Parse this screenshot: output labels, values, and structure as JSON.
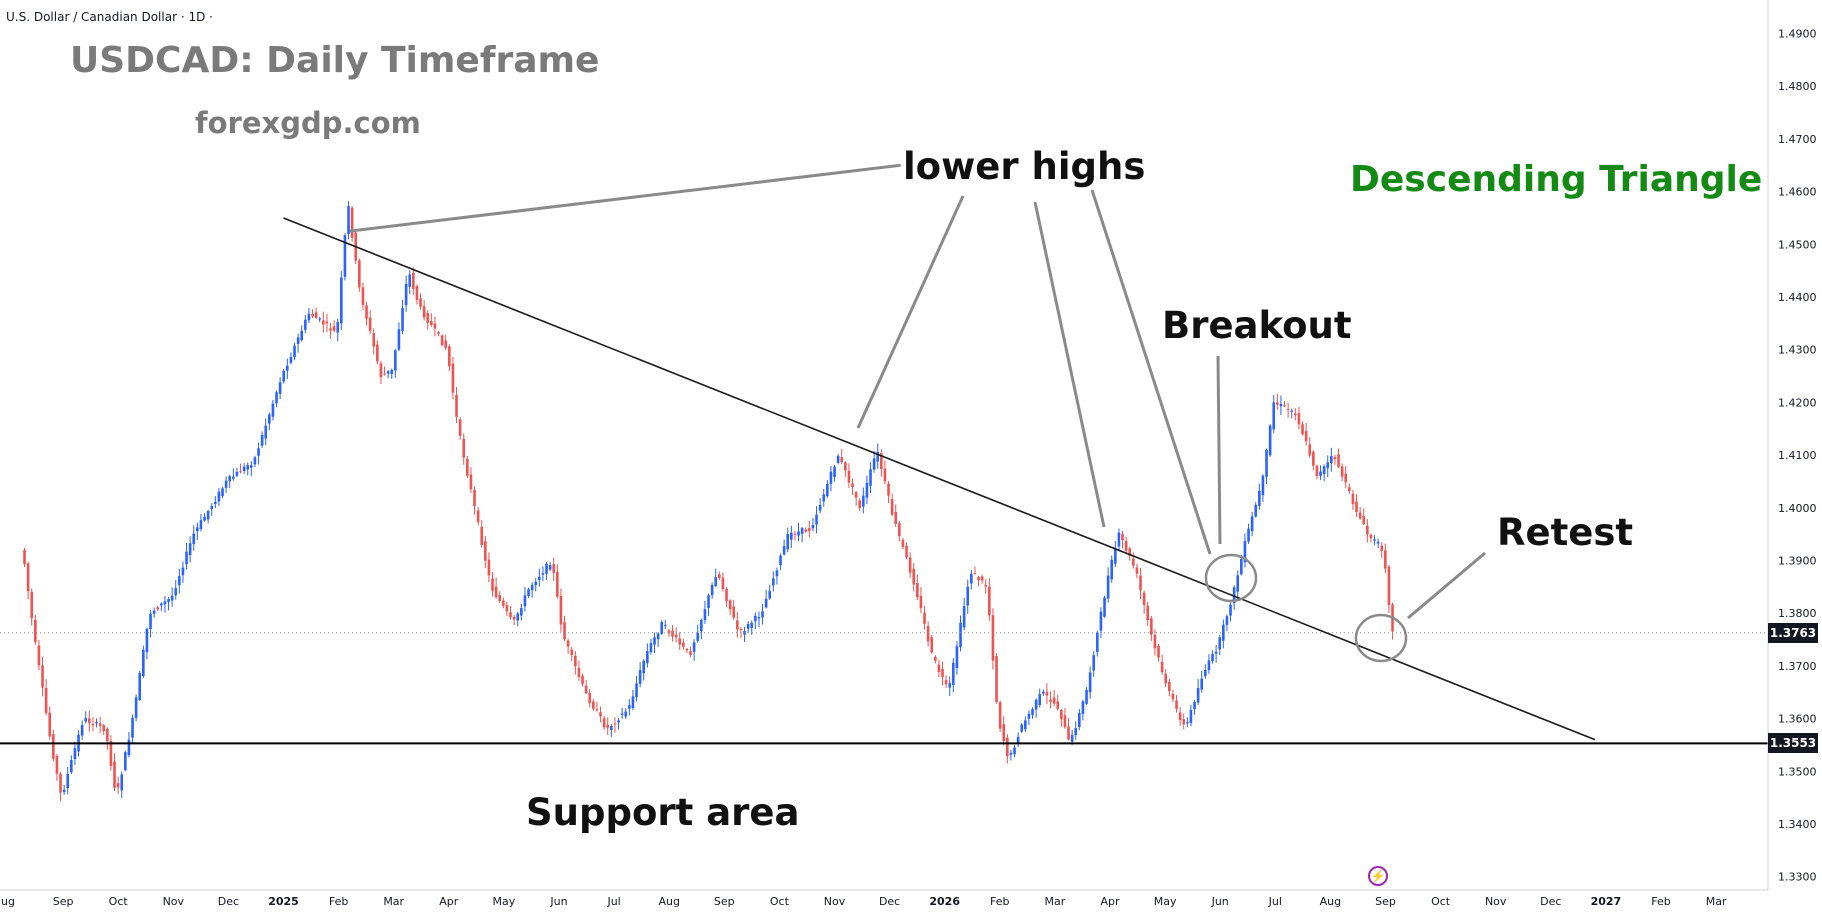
{
  "header": {
    "symbol_line": "U.S. Dollar / Canadian Dollar · 1D ·"
  },
  "annotations": {
    "title": "USDCAD: Daily Timeframe",
    "website": "forexgdp.com",
    "lower_highs": "lower highs",
    "pattern": "Descending Triangle",
    "breakout": "Breakout",
    "retest": "Retest",
    "support": "Support area"
  },
  "price_tags": {
    "last": "1.3763",
    "support": "1.3553"
  },
  "colors": {
    "up_candle": "#2962ff",
    "down_candle": "#ef5350",
    "pattern_text": "#138a13",
    "annotation_grey": "#7a7a7a"
  },
  "icons": {
    "alert": "lightning-alert-icon"
  },
  "chart_data": {
    "type": "candlestick",
    "instrument": "U.S. Dollar / Canadian Dollar",
    "timeframe": "1D",
    "x_ticks": [
      "ug",
      "Sep",
      "Oct",
      "Nov",
      "Dec",
      "2025",
      "Feb",
      "Mar",
      "Apr",
      "May",
      "Jun",
      "Jul",
      "Aug",
      "Sep",
      "Oct",
      "Nov",
      "Dec",
      "2026",
      "Feb",
      "Mar",
      "Apr",
      "May",
      "Jun",
      "Jul",
      "Aug",
      "Sep",
      "Oct",
      "Nov",
      "Dec",
      "2027",
      "Feb",
      "Mar"
    ],
    "y_ticks": [
      "1.3300",
      "1.3400",
      "1.3500",
      "1.3600",
      "1.3700",
      "1.3800",
      "1.3900",
      "1.4000",
      "1.4100",
      "1.4200",
      "1.4300",
      "1.4400",
      "1.4500",
      "1.4600",
      "1.4700",
      "1.4800",
      "1.4900"
    ],
    "ylim": [
      1.329,
      1.4915
    ],
    "price_path_xy": [
      [
        0.3,
        1.392
      ],
      [
        0.5,
        1.376
      ],
      [
        0.8,
        1.356
      ],
      [
        1.0,
        1.345
      ],
      [
        1.4,
        1.36
      ],
      [
        1.8,
        1.358
      ],
      [
        2.0,
        1.345
      ],
      [
        2.3,
        1.36
      ],
      [
        2.6,
        1.38
      ],
      [
        3.0,
        1.383
      ],
      [
        3.4,
        1.395
      ],
      [
        4.0,
        1.405
      ],
      [
        4.5,
        1.409
      ],
      [
        5.0,
        1.425
      ],
      [
        5.5,
        1.437
      ],
      [
        6.0,
        1.433
      ],
      [
        6.2,
        1.458
      ],
      [
        6.4,
        1.442
      ],
      [
        6.8,
        1.425
      ],
      [
        7.0,
        1.426
      ],
      [
        7.3,
        1.445
      ],
      [
        7.5,
        1.438
      ],
      [
        8.0,
        1.43
      ],
      [
        8.2,
        1.415
      ],
      [
        8.5,
        1.4
      ],
      [
        8.8,
        1.385
      ],
      [
        9.2,
        1.378
      ],
      [
        9.5,
        1.385
      ],
      [
        9.9,
        1.39
      ],
      [
        10.1,
        1.376
      ],
      [
        10.5,
        1.365
      ],
      [
        10.9,
        1.358
      ],
      [
        11.3,
        1.362
      ],
      [
        11.6,
        1.372
      ],
      [
        11.9,
        1.378
      ],
      [
        12.4,
        1.372
      ],
      [
        12.9,
        1.388
      ],
      [
        13.3,
        1.376
      ],
      [
        13.7,
        1.38
      ],
      [
        14.2,
        1.395
      ],
      [
        14.6,
        1.396
      ],
      [
        15.1,
        1.41
      ],
      [
        15.5,
        1.4
      ],
      [
        15.8,
        1.411
      ],
      [
        16.1,
        1.398
      ],
      [
        16.5,
        1.385
      ],
      [
        16.8,
        1.372
      ],
      [
        17.1,
        1.365
      ],
      [
        17.5,
        1.388
      ],
      [
        17.8,
        1.385
      ],
      [
        18.0,
        1.36
      ],
      [
        18.2,
        1.352
      ],
      [
        18.4,
        1.358
      ],
      [
        18.8,
        1.365
      ],
      [
        19.1,
        1.362
      ],
      [
        19.3,
        1.355
      ],
      [
        19.6,
        1.365
      ],
      [
        20.0,
        1.387
      ],
      [
        20.2,
        1.395
      ],
      [
        20.5,
        1.388
      ],
      [
        20.8,
        1.375
      ],
      [
        21.1,
        1.365
      ],
      [
        21.4,
        1.358
      ],
      [
        21.7,
        1.368
      ],
      [
        22.0,
        1.374
      ],
      [
        22.3,
        1.385
      ],
      [
        22.5,
        1.394
      ],
      [
        22.8,
        1.405
      ],
      [
        23.0,
        1.42
      ],
      [
        23.4,
        1.418
      ],
      [
        23.8,
        1.406
      ],
      [
        24.1,
        1.41
      ],
      [
        24.4,
        1.402
      ],
      [
        24.7,
        1.395
      ],
      [
        25.0,
        1.392
      ],
      [
        25.15,
        1.3763
      ]
    ],
    "price_path_note": "x = month index from the first tick (0 = Aug 2024)",
    "last_price": 1.3763,
    "support_level": 1.3553,
    "descending_trendline": [
      [
        5.0,
        1.455
      ],
      [
        28.8,
        1.356
      ]
    ],
    "lower_highs_line": [
      [
        6.2,
        1.4525
      ],
      [
        16.2,
        1.465
      ]
    ]
  }
}
